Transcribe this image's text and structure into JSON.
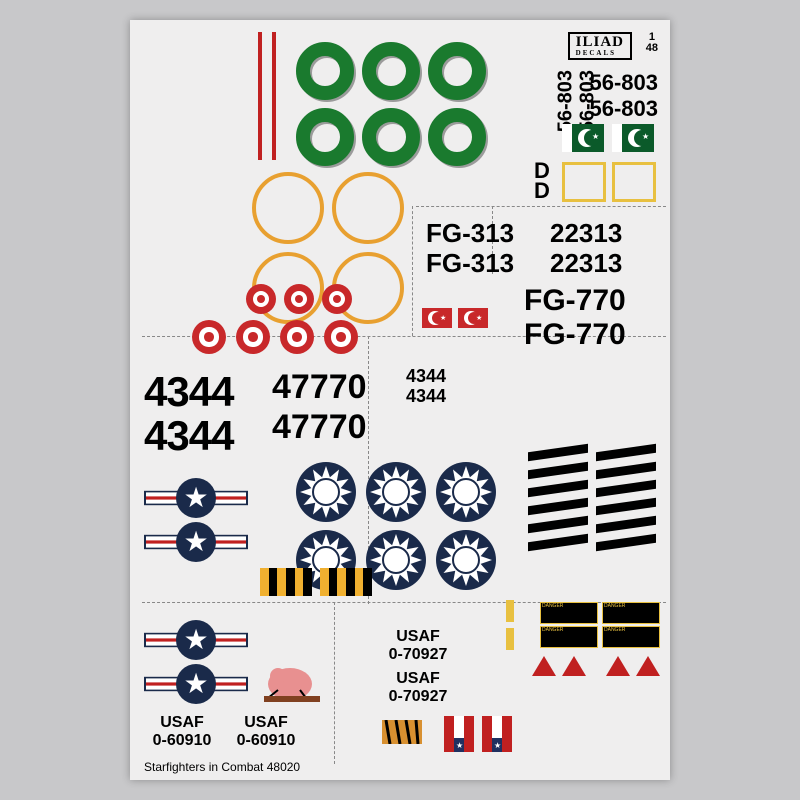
{
  "brand": {
    "line1": "ILIAD",
    "line2": "DECALS",
    "scale": "1\n48"
  },
  "colors": {
    "green": "#1a7a2e",
    "orange": "#e8a030",
    "turkeyRed": "#c8282a",
    "navy": "#1a2a4a",
    "black": "#000000",
    "yellow": "#e8c040",
    "pakGreen": "#0b5a2a",
    "red": "#c02020"
  },
  "rocSun": {
    "points": 12,
    "outer": 26,
    "inner": 17,
    "disc": 13
  },
  "pakistan": {
    "serial": "56-803"
  },
  "turkey": {
    "code": "FG-313",
    "tail": "22313"
  },
  "fg770": {
    "code": "FG-770",
    "tail": "47770",
    "nose": "4344"
  },
  "usaf": {
    "nose": "0-60910",
    "nose2": "0-70927",
    "label": "USAF"
  },
  "footer": "Starfighters in Combat   48020"
}
